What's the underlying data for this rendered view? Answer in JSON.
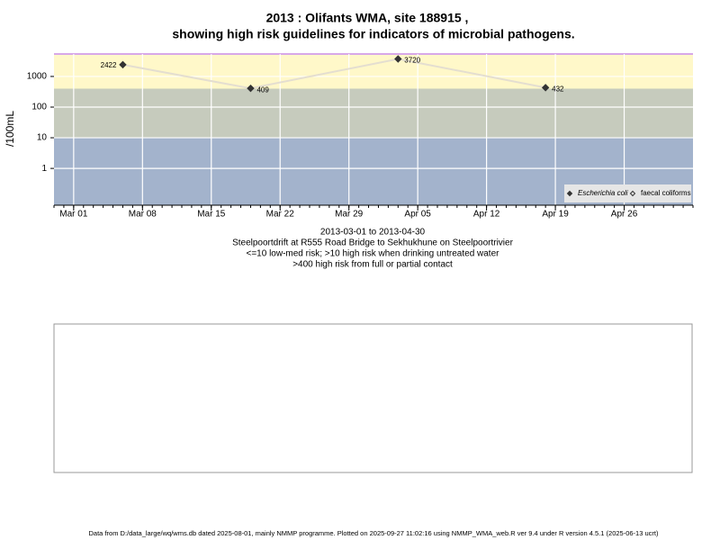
{
  "chart_data": {
    "type": "line",
    "title": "2013 : Olifants WMA, site 188915 ,",
    "subtitle": "showing high risk guidelines for indicators of microbial pathogens.",
    "y_label": "/100mL",
    "x_label_lines": [
      "2013-03-01 to 2013-04-30",
      "Steelpoortdrift at R555 Road Bridge to Sekhukhune on Steelpoortrivier",
      "<=10 low-med risk; >10 high risk when drinking untreated water",
      ">400 high risk from full or partial contact"
    ],
    "x": [
      "Mar 06",
      "Mar 19",
      "Apr 03",
      "Apr 18"
    ],
    "series": [
      {
        "name": "Escherichia coli",
        "color": "#333333",
        "values": [
          2422,
          409,
          3720,
          432
        ]
      },
      {
        "name": "faecal coliforms",
        "color": "#333333",
        "values": [
          null,
          null,
          null,
          null
        ]
      }
    ],
    "xlim": [
      "Feb 27",
      "May 03"
    ],
    "xticks": [
      "Mar 01",
      "Mar 08",
      "Mar 15",
      "Mar 22",
      "Mar 29",
      "Apr 05",
      "Apr 12",
      "Apr 19",
      "Apr 26"
    ],
    "ylim": [
      0.063,
      5400
    ],
    "yticks": [
      1,
      10,
      100,
      1000
    ],
    "log_y": true,
    "grid": true,
    "risk_thresholds": [
      10,
      400
    ],
    "band_colors": [
      "#a3b3cc",
      "#c6cbbd",
      "#fff8c9"
    ],
    "line_color": "#e4ded0",
    "legend": "bottom-right"
  },
  "footer": "Data from D:/data_large/wq/wms.db dated 2025-08-01, mainly NMMP programme. Plotted on 2025-09-27 11:02:16 using NMMP_WMA_web.R ver 9.4 under R version 4.5.1 (2025-06-13 ucrt)"
}
